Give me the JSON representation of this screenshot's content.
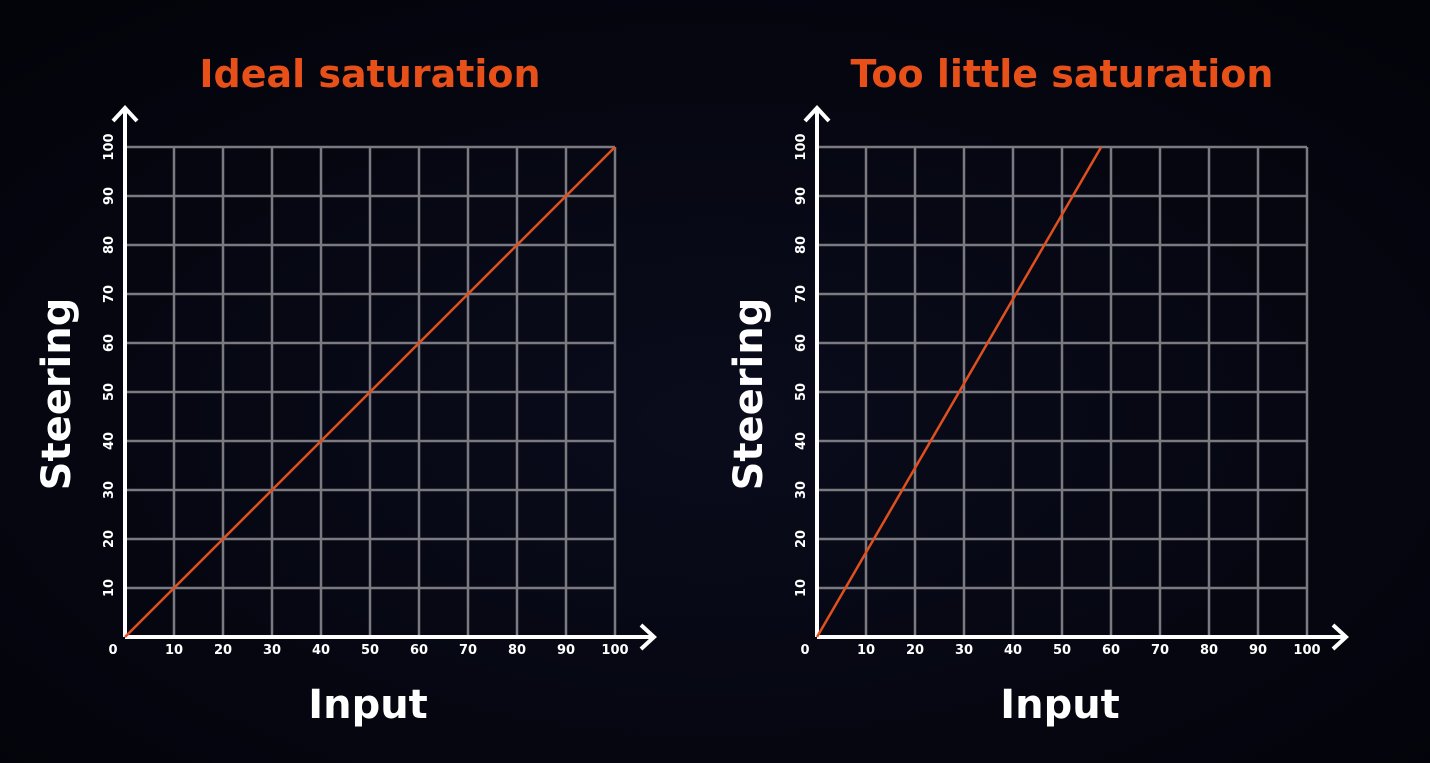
{
  "chart_data": [
    {
      "type": "line",
      "title": "Ideal saturation",
      "x_label": "Input",
      "y_label": "Steering",
      "x": [
        0,
        100
      ],
      "series": [
        {
          "color": "#e0501f",
          "values": [
            0,
            100
          ]
        }
      ],
      "xlim": [
        0,
        100
      ],
      "ylim": [
        0,
        100
      ],
      "xticks": [
        0,
        10,
        20,
        30,
        40,
        50,
        60,
        70,
        80,
        90,
        100
      ],
      "yticks": [
        10,
        20,
        30,
        40,
        50,
        60,
        70,
        80,
        90,
        100
      ],
      "grid": true
    },
    {
      "type": "line",
      "title": "Too little saturation",
      "x_label": "Input",
      "y_label": "Steering",
      "x": [
        0,
        58
      ],
      "series": [
        {
          "color": "#e0501f",
          "values": [
            0,
            100
          ]
        }
      ],
      "xlim": [
        0,
        100
      ],
      "ylim": [
        0,
        100
      ],
      "xticks": [
        0,
        10,
        20,
        30,
        40,
        50,
        60,
        70,
        80,
        90,
        100
      ],
      "yticks": [
        10,
        20,
        30,
        40,
        50,
        60,
        70,
        80,
        90,
        100
      ],
      "grid": true
    }
  ]
}
